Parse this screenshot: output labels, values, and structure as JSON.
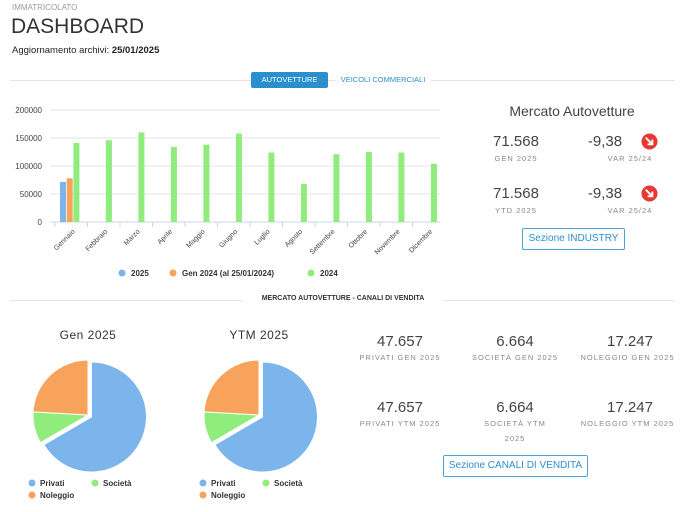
{
  "header": {
    "section": "IMMATRICOLATO",
    "title": "DASHBOARD",
    "update_label": "Aggiornamento archivi:",
    "update_date": "25/01/2025"
  },
  "tabs": [
    {
      "label": "AUTOVETTURE",
      "active": true
    },
    {
      "label": "VEICOLI COMMERCIALI",
      "active": false
    }
  ],
  "market": {
    "title": "Mercato Autovetture",
    "kpis": [
      {
        "value": "71.568",
        "label": "GEN 2025"
      },
      {
        "value": "-9,38",
        "label": "VAR 25/24"
      },
      {
        "value": "71.568",
        "label": "YTD 2025"
      },
      {
        "value": "-9,38",
        "label": "VAR 25/24"
      }
    ],
    "button": "Sezione INDUSTRY"
  },
  "channels": {
    "title": "MERCATO AUTOVETTURE - CANALI DI VENDITA",
    "kpis": [
      {
        "value": "47.657",
        "label": "PRIVATI GEN 2025"
      },
      {
        "value": "6.664",
        "label": "SOCIETÀ GEN 2025"
      },
      {
        "value": "17.247",
        "label": "NOLEGGIO GEN 2025"
      },
      {
        "value": "47.657",
        "label": "PRIVATI YTM 2025"
      },
      {
        "value": "6.664",
        "label": "SOCIETÀ YTM 2025"
      },
      {
        "value": "17.247",
        "label": "NOLEGGIO YTM 2025"
      }
    ],
    "button": "Sezione CANALI DI VENDITA"
  },
  "chart_data": [
    {
      "type": "bar",
      "categories": [
        "Gennaio",
        "Febbraio",
        "Marzo",
        "Aprile",
        "Maggio",
        "Giugno",
        "Luglio",
        "Agosto",
        "Settembre",
        "Ottobre",
        "Novembre",
        "Dicembre"
      ],
      "series": [
        {
          "name": "2025",
          "color": "#7cb5ec",
          "values": [
            71568,
            null,
            null,
            null,
            null,
            null,
            null,
            null,
            null,
            null,
            null,
            null
          ]
        },
        {
          "name": "Gen 2024 (al 25/01/2024)",
          "color": "#f7a35c",
          "values": [
            78000,
            null,
            null,
            null,
            null,
            null,
            null,
            null,
            null,
            null,
            null,
            null
          ]
        },
        {
          "name": "2024",
          "color": "#90ed7d",
          "values": [
            141000,
            146000,
            160000,
            134000,
            138000,
            158000,
            124000,
            68000,
            121000,
            125000,
            124000,
            104000
          ]
        }
      ],
      "ylim": [
        0,
        200000
      ],
      "yticks": [
        0,
        50000,
        100000,
        150000,
        200000
      ],
      "grid": true
    },
    {
      "type": "pie",
      "title": "Gen 2025",
      "categories": [
        "Privati",
        "Società",
        "Noleggio"
      ],
      "values": [
        47657,
        6664,
        17247
      ],
      "colors": [
        "#7cb5ec",
        "#90ed7d",
        "#f7a35c"
      ]
    },
    {
      "type": "pie",
      "title": "YTM 2025",
      "categories": [
        "Privati",
        "Società",
        "Noleggio"
      ],
      "values": [
        47657,
        6664,
        17247
      ],
      "colors": [
        "#7cb5ec",
        "#90ed7d",
        "#f7a35c"
      ]
    }
  ]
}
